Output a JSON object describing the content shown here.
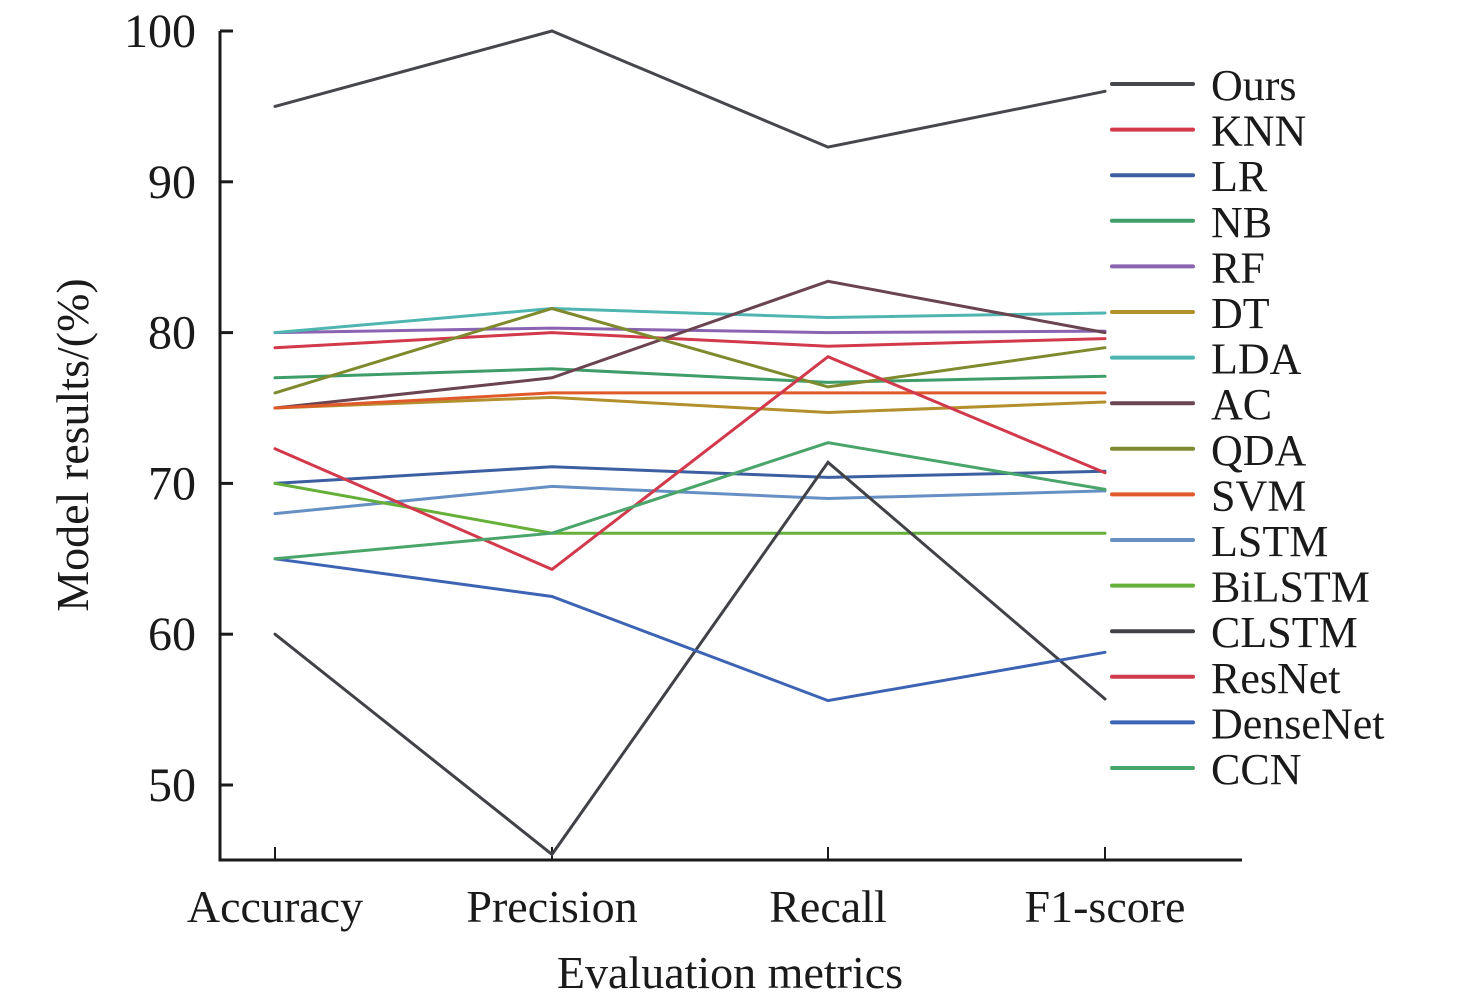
{
  "chart_data": {
    "type": "line",
    "title": "",
    "xlabel": "Evaluation metrics",
    "ylabel": "Model results/(%)",
    "categories": [
      "Accuracy",
      "Precision",
      "Recall",
      "F1-score"
    ],
    "ylim": [
      45,
      100
    ],
    "yticks": [
      50,
      60,
      70,
      80,
      90,
      100
    ],
    "grid": false,
    "legend_position": "right",
    "series": [
      {
        "name": "Ours",
        "color": "#45474d",
        "values": [
          95.0,
          100.0,
          92.3,
          96.0
        ]
      },
      {
        "name": "KNN",
        "color": "#d2394a",
        "values": [
          79.0,
          80.0,
          79.1,
          79.6
        ]
      },
      {
        "name": "LR",
        "color": "#3b5fa0",
        "values": [
          70.0,
          71.1,
          70.4,
          70.8
        ]
      },
      {
        "name": "NB",
        "color": "#3e9d68",
        "values": [
          77.0,
          77.6,
          76.7,
          77.1
        ]
      },
      {
        "name": "RF",
        "color": "#8a64b0",
        "values": [
          80.0,
          80.3,
          80.0,
          80.1
        ]
      },
      {
        "name": "DT",
        "color": "#b48f2e",
        "values": [
          75.0,
          75.7,
          74.7,
          75.4
        ]
      },
      {
        "name": "LDA",
        "color": "#4fb5b1",
        "values": [
          80.0,
          81.6,
          81.0,
          81.3
        ]
      },
      {
        "name": "AC",
        "color": "#6a4450",
        "values": [
          75.0,
          77.0,
          83.4,
          80.0
        ]
      },
      {
        "name": "QDA",
        "color": "#7f8a2e",
        "values": [
          76.0,
          81.6,
          76.4,
          79.0
        ]
      },
      {
        "name": "SVM",
        "color": "#e0592a",
        "values": [
          75.0,
          76.0,
          76.0,
          76.0
        ]
      },
      {
        "name": "LSTM",
        "color": "#6690c4",
        "values": [
          68.0,
          69.8,
          69.0,
          69.5
        ]
      },
      {
        "name": "BiLSTM",
        "color": "#66b03a",
        "values": [
          70.0,
          66.7,
          66.7,
          66.7
        ]
      },
      {
        "name": "CLSTM",
        "color": "#404247",
        "values": [
          60.0,
          45.4,
          71.4,
          55.7
        ]
      },
      {
        "name": "ResNet",
        "color": "#d13a4c",
        "values": [
          72.3,
          64.3,
          78.4,
          70.7
        ]
      },
      {
        "name": "DenseNet",
        "color": "#3d63b4",
        "values": [
          65.0,
          62.5,
          55.6,
          58.8
        ]
      },
      {
        "name": "CCN",
        "color": "#4aa56b",
        "values": [
          65.0,
          66.7,
          72.7,
          69.6
        ]
      }
    ]
  }
}
